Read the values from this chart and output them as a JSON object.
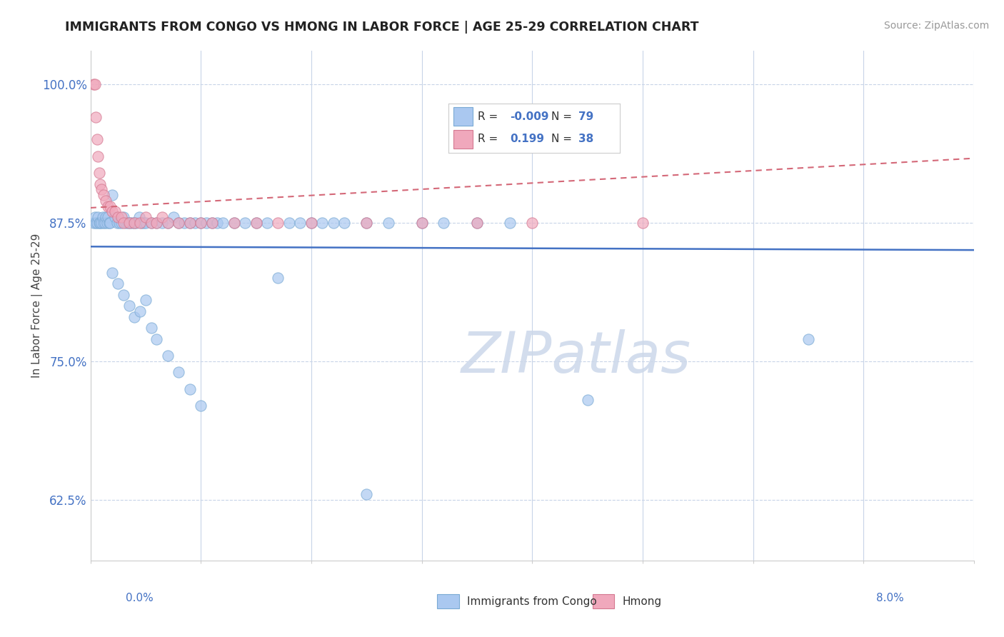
{
  "title": "IMMIGRANTS FROM CONGO VS HMONG IN LABOR FORCE | AGE 25-29 CORRELATION CHART",
  "source": "Source: ZipAtlas.com",
  "ylabel": "In Labor Force | Age 25-29",
  "xlim": [
    0.0,
    8.0
  ],
  "ylim": [
    57.0,
    103.0
  ],
  "yticks": [
    62.5,
    75.0,
    87.5,
    100.0
  ],
  "ytick_labels": [
    "62.5%",
    "75.0%",
    "87.5%",
    "100.0%"
  ],
  "legend_r_congo": "-0.009",
  "legend_n_congo": "79",
  "legend_r_hmong": "0.199",
  "legend_n_hmong": "38",
  "congo_color": "#aac8f0",
  "congo_edge": "#7aaad4",
  "hmong_color": "#f0a8bc",
  "hmong_edge": "#d47890",
  "trendline_congo_color": "#4472c4",
  "trendline_hmong_color": "#d46878",
  "watermark_color": "#ccd8ea",
  "congo_x": [
    0.03,
    0.04,
    0.05,
    0.06,
    0.07,
    0.08,
    0.09,
    0.1,
    0.11,
    0.12,
    0.13,
    0.14,
    0.15,
    0.16,
    0.17,
    0.18,
    0.2,
    0.22,
    0.24,
    0.26,
    0.28,
    0.3,
    0.32,
    0.34,
    0.36,
    0.38,
    0.4,
    0.42,
    0.44,
    0.46,
    0.48,
    0.5,
    0.55,
    0.6,
    0.65,
    0.7,
    0.75,
    0.8,
    0.85,
    0.9,
    0.95,
    1.0,
    1.05,
    1.1,
    1.15,
    1.2,
    1.3,
    1.4,
    1.5,
    1.6,
    1.7,
    1.8,
    1.9,
    2.0,
    2.1,
    2.2,
    2.3,
    2.5,
    2.7,
    3.0,
    3.2,
    3.5,
    3.8,
    0.2,
    0.25,
    0.3,
    0.35,
    0.4,
    0.45,
    0.5,
    0.55,
    0.6,
    0.7,
    0.8,
    0.9,
    1.0,
    6.5,
    4.5,
    2.5
  ],
  "congo_y": [
    87.5,
    88.0,
    87.5,
    87.5,
    88.0,
    87.5,
    87.5,
    87.5,
    88.0,
    87.5,
    87.5,
    88.0,
    87.5,
    88.0,
    87.5,
    87.5,
    90.0,
    88.0,
    87.5,
    87.5,
    87.5,
    88.0,
    87.5,
    87.5,
    87.5,
    87.5,
    87.5,
    87.5,
    88.0,
    87.5,
    87.5,
    87.5,
    87.5,
    87.5,
    87.5,
    87.5,
    88.0,
    87.5,
    87.5,
    87.5,
    87.5,
    87.5,
    87.5,
    87.5,
    87.5,
    87.5,
    87.5,
    87.5,
    87.5,
    87.5,
    82.5,
    87.5,
    87.5,
    87.5,
    87.5,
    87.5,
    87.5,
    87.5,
    87.5,
    87.5,
    87.5,
    87.5,
    87.5,
    83.0,
    82.0,
    81.0,
    80.0,
    79.0,
    79.5,
    80.5,
    78.0,
    77.0,
    75.5,
    74.0,
    72.5,
    71.0,
    77.0,
    71.5,
    63.0
  ],
  "hmong_x": [
    0.03,
    0.04,
    0.05,
    0.06,
    0.07,
    0.08,
    0.09,
    0.1,
    0.12,
    0.14,
    0.16,
    0.18,
    0.2,
    0.22,
    0.25,
    0.28,
    0.3,
    0.35,
    0.4,
    0.45,
    0.5,
    0.55,
    0.6,
    0.65,
    0.7,
    0.8,
    0.9,
    1.0,
    1.1,
    1.3,
    1.5,
    1.7,
    2.0,
    2.5,
    3.0,
    3.5,
    4.0,
    5.0
  ],
  "hmong_y": [
    100.0,
    100.0,
    97.0,
    95.0,
    93.5,
    92.0,
    91.0,
    90.5,
    90.0,
    89.5,
    89.0,
    89.0,
    88.5,
    88.5,
    88.0,
    88.0,
    87.5,
    87.5,
    87.5,
    87.5,
    88.0,
    87.5,
    87.5,
    88.0,
    87.5,
    87.5,
    87.5,
    87.5,
    87.5,
    87.5,
    87.5,
    87.5,
    87.5,
    87.5,
    87.5,
    87.5,
    87.5,
    87.5
  ]
}
